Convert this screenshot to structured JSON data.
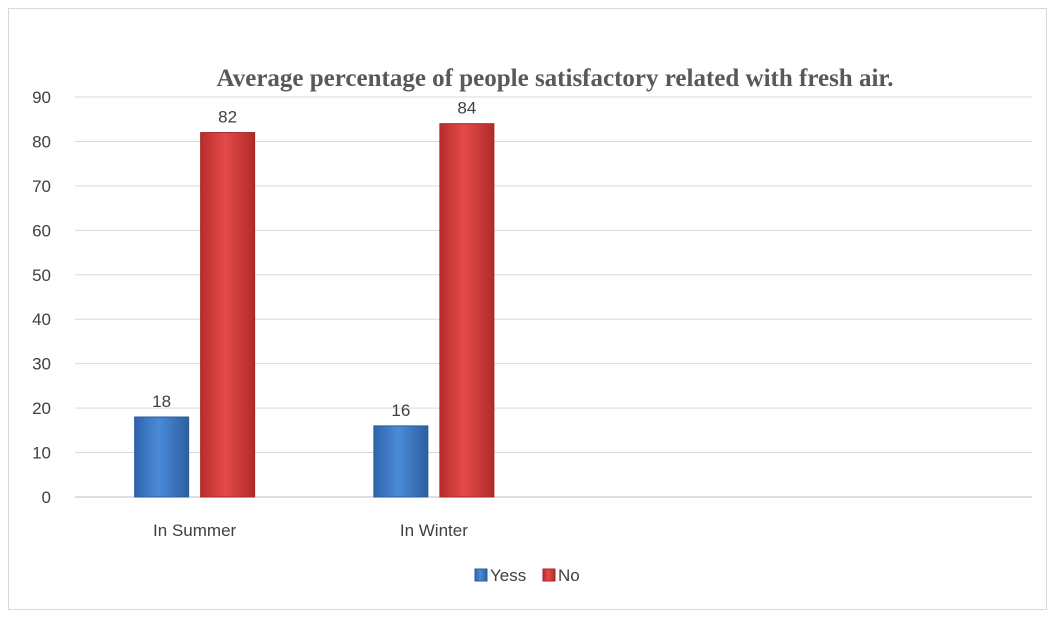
{
  "chart_data": {
    "type": "bar",
    "title": "Average percentage of people satisfactory related with fresh air.",
    "categories": [
      "In Summer",
      "In Winter"
    ],
    "category_slots": 4,
    "series": [
      {
        "name": "Yess",
        "values": [
          18,
          16
        ],
        "color": "#3b78c9",
        "edge": "#2a5d9f"
      },
      {
        "name": "No",
        "values": [
          82,
          84
        ],
        "color": "#d93b3b",
        "edge": "#a52626"
      }
    ],
    "ylim": [
      0,
      90
    ],
    "yticks": [
      0,
      10,
      20,
      30,
      40,
      50,
      60,
      70,
      80,
      90
    ],
    "grid": true,
    "legend_position": "bottom",
    "data_labels": true
  }
}
